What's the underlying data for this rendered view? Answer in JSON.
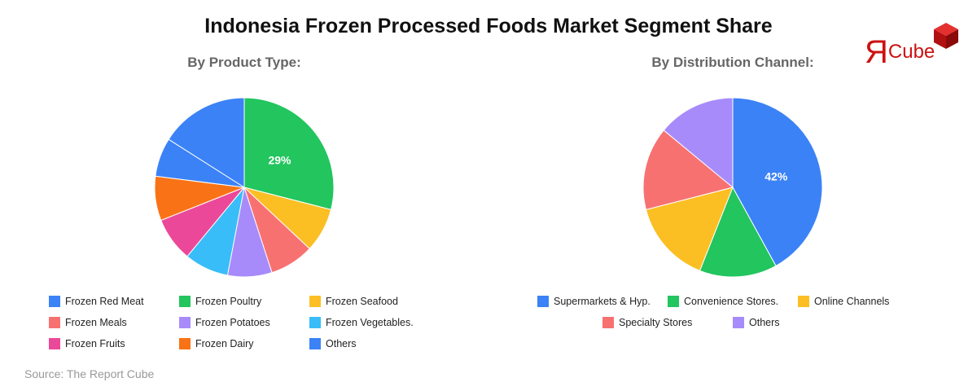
{
  "title": "Indonesia Frozen Processed Foods Market Segment Share",
  "source": "Source: The Report Cube",
  "logo": {
    "glyph": "Я",
    "text": "Cube",
    "color": "#cc1111"
  },
  "chart_data": [
    {
      "type": "pie",
      "title": "By Product Type:",
      "series": [
        {
          "label": "Frozen Red Meat",
          "value": 16,
          "color": "#3b82f6"
        },
        {
          "label": "Frozen Poultry",
          "value": 29,
          "color": "#22c55e"
        },
        {
          "label": "Frozen Seafood",
          "value": 8,
          "color": "#fbbf24"
        },
        {
          "label": "Frozen Meals",
          "value": 8,
          "color": "#f87171"
        },
        {
          "label": "Frozen Potatoes",
          "value": 8,
          "color": "#a78bfa"
        },
        {
          "label": "Frozen Vegetables.",
          "value": 8,
          "color": "#38bdf8"
        },
        {
          "label": "Frozen Fruits",
          "value": 8,
          "color": "#ec4899"
        },
        {
          "label": "Frozen Dairy",
          "value": 8,
          "color": "#f97316"
        },
        {
          "label": "Others",
          "value": 7,
          "color": "#3b82f6"
        }
      ],
      "start_label": "Frozen Poultry",
      "data_labels": [
        {
          "label": "Frozen Poultry",
          "text": "29%"
        }
      ]
    },
    {
      "type": "pie",
      "title": "By Distribution Channel:",
      "series": [
        {
          "label": "Supermarkets & Hyp.",
          "value": 42,
          "color": "#3b82f6"
        },
        {
          "label": "Convenience Stores.",
          "value": 14,
          "color": "#22c55e"
        },
        {
          "label": "Online Channels",
          "value": 15,
          "color": "#fbbf24"
        },
        {
          "label": "Specialty Stores",
          "value": 15,
          "color": "#f87171"
        },
        {
          "label": "Others",
          "value": 14,
          "color": "#a78bfa"
        }
      ],
      "start_label": "Supermarkets & Hyp.",
      "data_labels": [
        {
          "label": "Supermarkets & Hyp.",
          "text": "42%"
        }
      ]
    }
  ]
}
